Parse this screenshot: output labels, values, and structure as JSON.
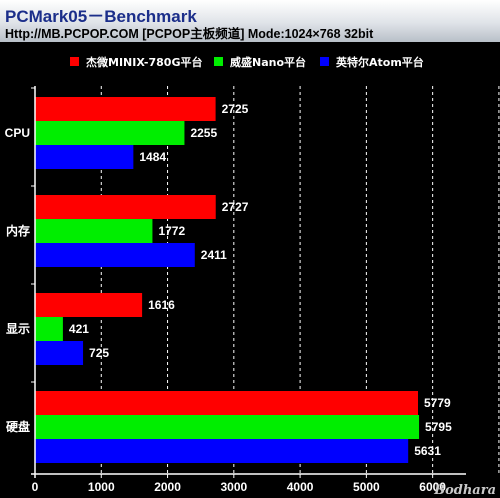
{
  "header": {
    "title": "PCMark05－Benchmark",
    "subtitle": "Http://MB.PCPOP.COM [PCPOP主板频道] Mode:1024×768 32bit"
  },
  "watermark": "Bodhara",
  "colors": {
    "background": "#000000",
    "series": [
      "#ff0000",
      "#00ee00",
      "#0000ff"
    ],
    "axis": "#ffffff"
  },
  "chart_data": {
    "type": "bar",
    "orientation": "horizontal",
    "categories": [
      "CPU",
      "内存",
      "显示",
      "硬盘"
    ],
    "series": [
      {
        "name": "杰微MINIX-780G平台",
        "color": "#ff0000",
        "values": [
          2725,
          2727,
          1616,
          5779
        ]
      },
      {
        "name": "威盛Nano平台",
        "color": "#00ee00",
        "values": [
          2255,
          1772,
          421,
          5795
        ]
      },
      {
        "name": "英特尔Atom平台",
        "color": "#0000ff",
        "values": [
          1484,
          2411,
          725,
          5631
        ]
      }
    ],
    "xlim": [
      0,
      7000
    ],
    "xticks": [
      0,
      1000,
      2000,
      3000,
      4000,
      5000,
      6000
    ],
    "grid": "vertical dashed",
    "legend": "top"
  }
}
